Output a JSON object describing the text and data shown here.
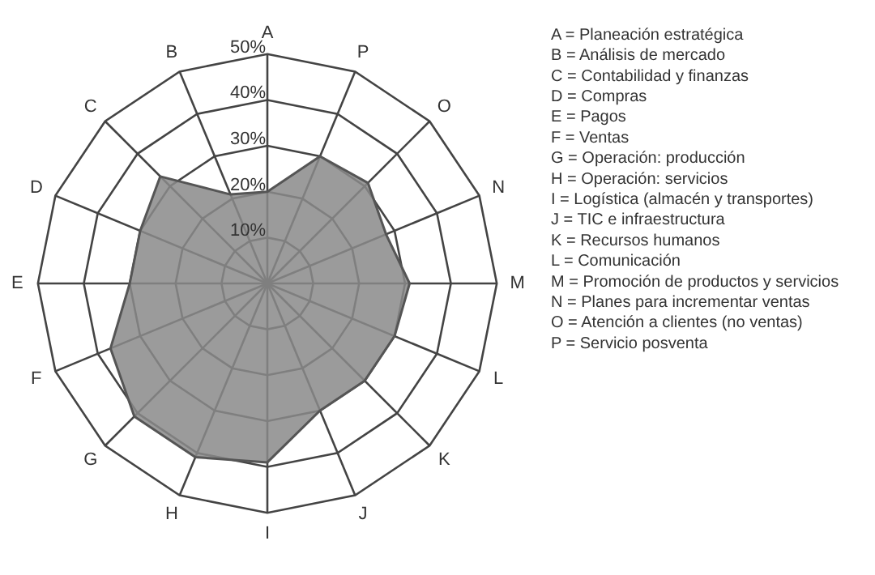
{
  "chart_data": {
    "type": "radar",
    "categories": [
      "A",
      "P",
      "O",
      "N",
      "M",
      "L",
      "K",
      "J",
      "I",
      "H",
      "G",
      "F",
      "E",
      "D",
      "C",
      "B"
    ],
    "series": [
      {
        "color": "#8a8a8a",
        "values": [
          20,
          30,
          31,
          28,
          31,
          30,
          30,
          30,
          39,
          41,
          41,
          37,
          30,
          30,
          33,
          21
        ]
      }
    ],
    "ylim": [
      0,
      50
    ],
    "yticks": [
      {
        "value": 10,
        "label": "10%"
      },
      {
        "value": 20,
        "label": "20%"
      },
      {
        "value": 30,
        "label": "30%"
      },
      {
        "value": 40,
        "label": "40%"
      },
      {
        "value": 50,
        "label": "50%"
      }
    ],
    "grid": true,
    "marker": "none",
    "annotations": [
      "A = Planeación estratégica",
      "B = Análisis de mercado",
      "C = Contabilidad y finanzas",
      "D = Compras",
      "E = Pagos",
      "F = Ventas",
      "G = Operación: producción",
      "H = Operación: servicios",
      "I = Logística (almacén y transportes)",
      "J = TIC e infraestructura",
      "K = Recursos humanos",
      "L = Comunicación",
      "M = Promoción de productos y servicios",
      "N = Planes para incrementar ventas",
      "O = Atención a clientes (no ventas)",
      "P = Servicio posventa"
    ]
  }
}
